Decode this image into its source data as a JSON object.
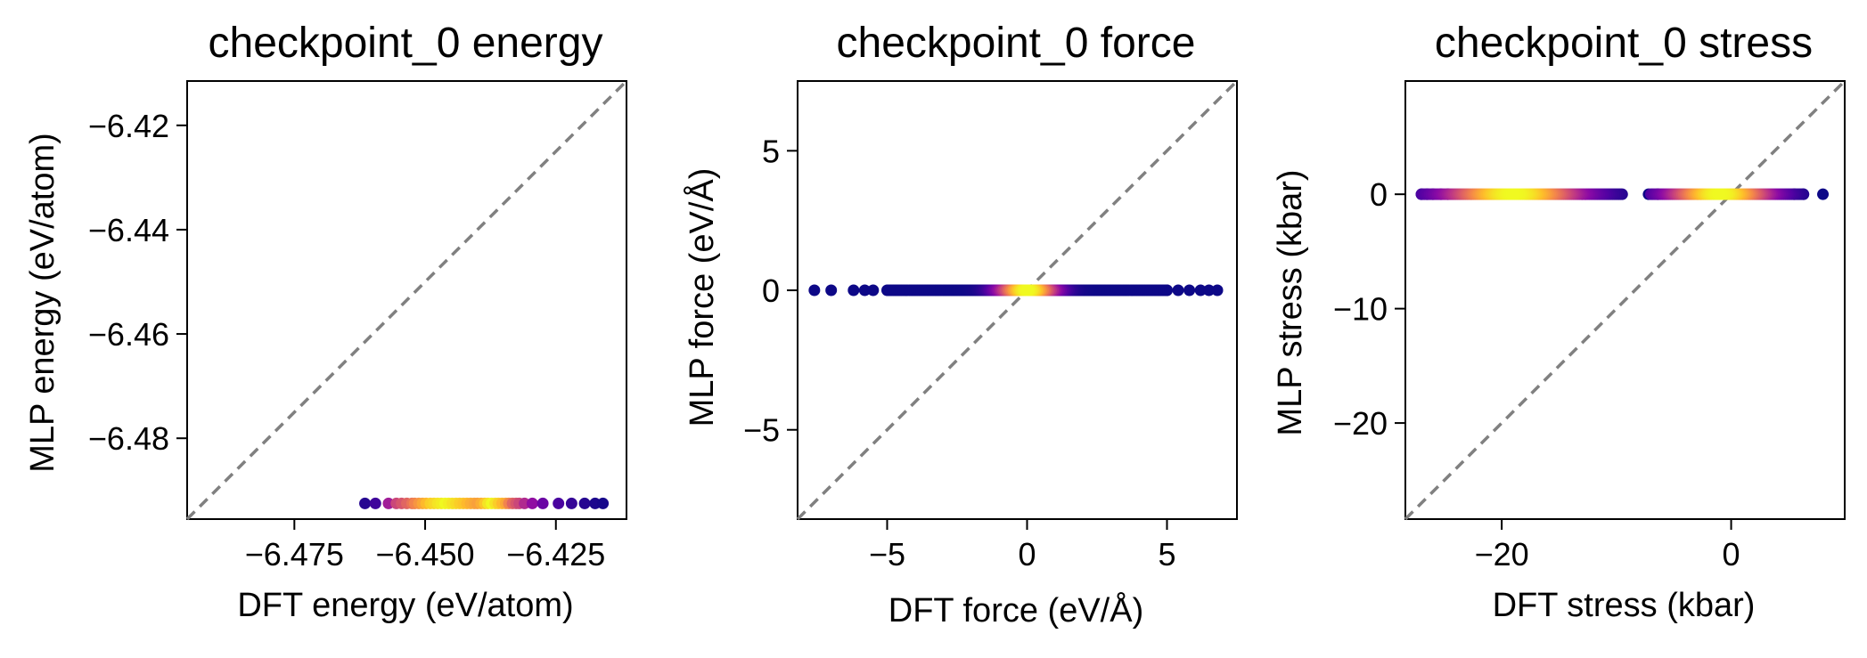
{
  "chart_data": [
    {
      "type": "scatter",
      "title": "checkpoint_0 energy",
      "xlabel": "DFT energy (eV/atom)",
      "ylabel": "MLP energy (eV/atom)",
      "xlim": [
        -6.4955,
        -6.4115
      ],
      "ylim": [
        -6.4955,
        -6.4115
      ],
      "xticks": [
        -6.475,
        -6.45,
        -6.425
      ],
      "xtick_labels": [
        "−6.475",
        "−6.450",
        "−6.425"
      ],
      "yticks": [
        -6.48,
        -6.46,
        -6.44,
        -6.42
      ],
      "ytick_labels": [
        "−6.48",
        "−6.46",
        "−6.44",
        "−6.42"
      ],
      "diagonal": "y = x (dashed gray)",
      "colormap": "plasma (point density)",
      "points": {
        "y": -6.4925,
        "x": [
          -6.4615,
          -6.4595,
          -6.457,
          -6.4555,
          -6.4545,
          -6.4535,
          -6.4525,
          -6.452,
          -6.4512,
          -6.4505,
          -6.4498,
          -6.449,
          -6.4483,
          -6.4476,
          -6.4469,
          -6.4462,
          -6.4455,
          -6.4448,
          -6.4441,
          -6.4434,
          -6.4427,
          -6.442,
          -6.4413,
          -6.4406,
          -6.44,
          -6.4393,
          -6.4386,
          -6.438,
          -6.4373,
          -6.4366,
          -6.436,
          -6.4353,
          -6.4346,
          -6.434,
          -6.4333,
          -6.4326,
          -6.432,
          -6.431,
          -6.4295,
          -6.4275,
          -6.4245,
          -6.422,
          -6.4195,
          -6.4175,
          -6.416
        ],
        "density": [
          0.05,
          0.1,
          0.35,
          0.5,
          0.55,
          0.6,
          0.65,
          0.7,
          0.75,
          0.8,
          0.85,
          0.9,
          0.92,
          0.95,
          0.97,
          1.0,
          0.98,
          0.95,
          0.93,
          0.9,
          0.88,
          0.85,
          0.82,
          0.8,
          0.78,
          0.82,
          0.88,
          0.95,
          1.0,
          0.95,
          0.9,
          0.85,
          0.8,
          0.7,
          0.6,
          0.55,
          0.5,
          0.4,
          0.3,
          0.2,
          0.12,
          0.08,
          0.05,
          0.03,
          0.02
        ]
      },
      "color_axis": "bottom"
    },
    {
      "type": "scatter",
      "title": "checkpoint_0 force",
      "xlabel": "DFT force (eV/Å)",
      "ylabel": "MLP force (eV/Å)",
      "xlim": [
        -8.2,
        7.5
      ],
      "ylim": [
        -8.2,
        7.5
      ],
      "xticks": [
        -5,
        0,
        5
      ],
      "xtick_labels": [
        "−5",
        "0",
        "5"
      ],
      "yticks": [
        -5,
        0,
        5
      ],
      "ytick_labels": [
        "−5",
        "0",
        "5"
      ],
      "diagonal": "y = x (dashed gray)",
      "colormap": "plasma (point density)",
      "points": {
        "y": 0,
        "x_min": -7.6,
        "x_max": 6.8,
        "outliers": [
          -7.6,
          -7.0,
          -6.2,
          -5.8,
          -5.5,
          5.0,
          5.4,
          5.8,
          6.2,
          6.5,
          6.8
        ]
      }
    },
    {
      "type": "scatter",
      "title": "checkpoint_0 stress",
      "xlabel": "DFT stress (kbar)",
      "ylabel": "MLP stress (kbar)",
      "xlim": [
        -28.4,
        9.9
      ],
      "ylim": [
        -28.4,
        9.9
      ],
      "xticks": [
        -20,
        0
      ],
      "xtick_labels": [
        "−20",
        "0"
      ],
      "yticks": [
        -20,
        -10,
        0
      ],
      "ytick_labels": [
        "−20",
        "−10",
        "0"
      ],
      "diagonal": "y = x (dashed gray)",
      "colormap": "plasma (point density)",
      "points": {
        "y": 0,
        "clusters": [
          {
            "x_min": -27,
            "x_max": -9.5,
            "peak": -19
          },
          {
            "x_min": -7,
            "x_max": 6.3,
            "peak": -1
          }
        ],
        "outliers": [
          -27,
          -26.5,
          -26,
          -25.3,
          -24.7,
          -7.2,
          -6.4,
          5.5,
          6.3,
          8
        ]
      }
    }
  ]
}
